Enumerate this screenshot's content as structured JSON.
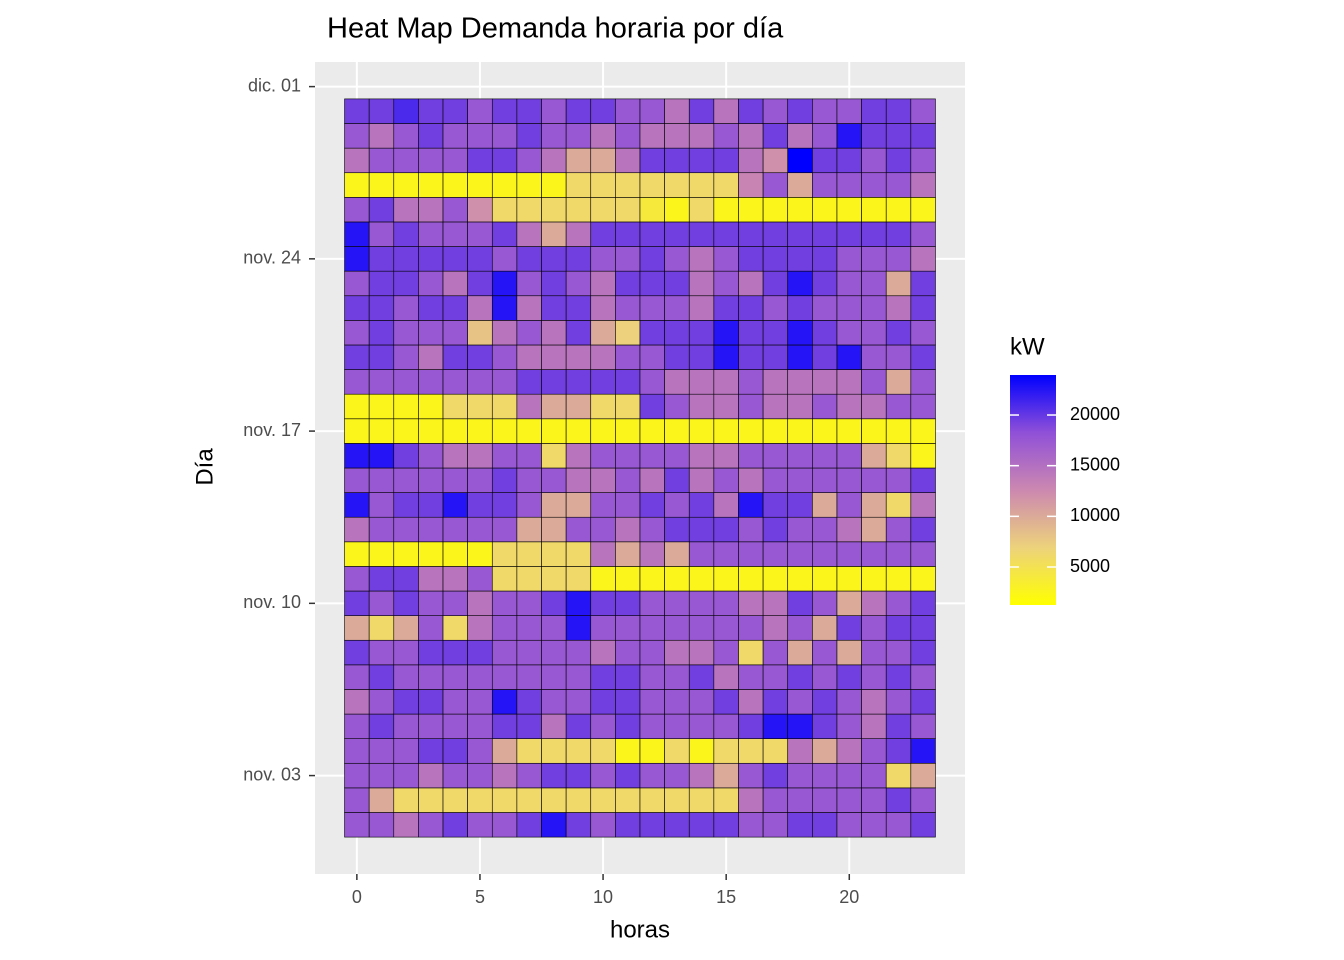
{
  "chart_data": {
    "type": "heatmap",
    "title": "Heat Map Demanda horaria por día",
    "x_label": "horas",
    "y_label": "Día",
    "legend_title": "kW",
    "x": [
      0,
      1,
      2,
      3,
      4,
      5,
      6,
      7,
      8,
      9,
      10,
      11,
      12,
      13,
      14,
      15,
      16,
      17,
      18,
      19,
      20,
      21,
      22,
      23
    ],
    "y": [
      1,
      2,
      3,
      4,
      5,
      6,
      7,
      8,
      9,
      10,
      11,
      12,
      13,
      14,
      15,
      16,
      17,
      18,
      19,
      20,
      21,
      22,
      23,
      24,
      25,
      26,
      27,
      28,
      29,
      30
    ],
    "z": [
      [
        17500,
        17500,
        14500,
        17500,
        19500,
        17500,
        17500,
        19500,
        22500,
        19500,
        17500,
        19500,
        19500,
        19500,
        19500,
        19500,
        17500,
        17500,
        19500,
        19500,
        17500,
        17500,
        17500,
        19500
      ],
      [
        17500,
        10000,
        6000,
        6000,
        6000,
        6000,
        6000,
        6000,
        6000,
        6000,
        6000,
        6000,
        6000,
        6000,
        6000,
        6000,
        14500,
        17500,
        17500,
        17500,
        17500,
        17500,
        19500,
        17500
      ],
      [
        17500,
        17500,
        17500,
        14500,
        17500,
        17500,
        14500,
        17500,
        19500,
        19500,
        17500,
        19500,
        17500,
        17500,
        14500,
        10000,
        17500,
        19500,
        17500,
        17500,
        17500,
        17500,
        6000,
        10000
      ],
      [
        17500,
        17500,
        17500,
        19500,
        19500,
        17500,
        10000,
        6000,
        6000,
        6000,
        6000,
        2500,
        2500,
        6000,
        2500,
        6000,
        6000,
        6000,
        14500,
        10000,
        14500,
        17500,
        19500,
        22500
      ],
      [
        17500,
        19500,
        17500,
        17500,
        17500,
        17500,
        19500,
        19500,
        14500,
        19500,
        17500,
        19500,
        17500,
        17500,
        17500,
        17500,
        19500,
        22500,
        22500,
        19500,
        17500,
        14500,
        19500,
        17500
      ],
      [
        14500,
        17500,
        19500,
        19500,
        17500,
        17500,
        22500,
        19500,
        17500,
        17500,
        19500,
        19500,
        17500,
        17500,
        17500,
        19500,
        14500,
        19500,
        17500,
        19500,
        17500,
        14500,
        17500,
        19500
      ],
      [
        17500,
        19500,
        17500,
        17500,
        17500,
        17500,
        17500,
        17500,
        17500,
        17500,
        19500,
        19500,
        17500,
        17500,
        19500,
        14500,
        17500,
        17500,
        19500,
        17500,
        19500,
        17500,
        19500,
        17500
      ],
      [
        19500,
        17500,
        17500,
        19500,
        19500,
        19500,
        17500,
        17500,
        17500,
        17500,
        14500,
        17500,
        17500,
        14500,
        14500,
        17500,
        6000,
        17500,
        10000,
        17500,
        10000,
        17500,
        17500,
        19500
      ],
      [
        10000,
        6000,
        10000,
        17500,
        6000,
        14500,
        17500,
        17500,
        17500,
        22500,
        17500,
        17500,
        17500,
        17500,
        17500,
        17500,
        17500,
        14500,
        17500,
        10000,
        19500,
        17500,
        19500,
        19500
      ],
      [
        19500,
        17500,
        19500,
        17500,
        17500,
        14500,
        17500,
        17500,
        19500,
        22500,
        19500,
        19500,
        17500,
        17500,
        17500,
        17500,
        14500,
        14500,
        19500,
        17500,
        10000,
        14500,
        17500,
        19500
      ],
      [
        17500,
        19500,
        19500,
        14500,
        14500,
        17500,
        6000,
        6000,
        6000,
        6000,
        2500,
        2500,
        2500,
        2500,
        2500,
        2500,
        2500,
        2500,
        2500,
        2500,
        2500,
        2500,
        2500,
        2500
      ],
      [
        2500,
        2500,
        2500,
        2500,
        2500,
        2500,
        6000,
        6000,
        6000,
        6000,
        14500,
        10000,
        14500,
        10000,
        17500,
        17500,
        17500,
        17500,
        17500,
        17500,
        17500,
        17500,
        17500,
        17500
      ],
      [
        14500,
        17500,
        17500,
        17500,
        17500,
        17500,
        17500,
        10000,
        10000,
        17500,
        17500,
        14500,
        17500,
        19500,
        19500,
        19500,
        17500,
        19500,
        17500,
        17500,
        14500,
        10000,
        17500,
        19500
      ],
      [
        22500,
        17500,
        19500,
        19500,
        22500,
        19500,
        19500,
        17500,
        10000,
        10000,
        17500,
        17500,
        19500,
        17500,
        19500,
        14500,
        22500,
        19500,
        19500,
        10000,
        17500,
        10000,
        6000,
        14500
      ],
      [
        17500,
        17500,
        17500,
        17500,
        17500,
        17500,
        19500,
        17500,
        17500,
        14500,
        14500,
        17500,
        14500,
        19500,
        14500,
        17500,
        14500,
        17500,
        17500,
        17500,
        17500,
        17500,
        17500,
        19500
      ],
      [
        22500,
        22500,
        19500,
        17500,
        14500,
        14500,
        17500,
        17500,
        6000,
        14500,
        17500,
        17500,
        17500,
        17500,
        14500,
        14500,
        17500,
        17500,
        17500,
        17500,
        17500,
        10000,
        6000,
        2500
      ],
      [
        2500,
        2500,
        2500,
        2500,
        2500,
        2500,
        2500,
        2500,
        2500,
        2500,
        2500,
        2500,
        2500,
        2500,
        2500,
        2500,
        2500,
        2500,
        2500,
        2500,
        2500,
        2500,
        2500,
        2500
      ],
      [
        2500,
        2500,
        2500,
        2500,
        6000,
        6000,
        6000,
        14500,
        10000,
        10000,
        6000,
        6000,
        19500,
        17500,
        14500,
        14500,
        17500,
        14500,
        14500,
        17500,
        14500,
        14500,
        17500,
        17500
      ],
      [
        17500,
        17500,
        17500,
        17500,
        17500,
        17500,
        17500,
        19500,
        19500,
        19500,
        19500,
        19500,
        17500,
        14500,
        14500,
        14500,
        17500,
        14500,
        14500,
        14500,
        14500,
        17500,
        10000,
        17500
      ],
      [
        19500,
        19500,
        17500,
        14500,
        19500,
        19500,
        17500,
        14500,
        14500,
        14500,
        14500,
        17500,
        17500,
        19500,
        19500,
        22500,
        19500,
        19500,
        22500,
        19500,
        22500,
        17500,
        17500,
        19500
      ],
      [
        17500,
        19500,
        17500,
        17500,
        17500,
        8000,
        14500,
        17500,
        14500,
        19500,
        10000,
        7000,
        19500,
        19500,
        19500,
        22500,
        19500,
        19500,
        22500,
        19500,
        17500,
        17500,
        19500,
        17500
      ],
      [
        19500,
        19500,
        17500,
        19500,
        19500,
        14500,
        22500,
        14500,
        19500,
        19500,
        14500,
        17500,
        17500,
        17500,
        14500,
        19500,
        19500,
        17500,
        19500,
        17500,
        17500,
        17500,
        14500,
        19500
      ],
      [
        17500,
        19500,
        19500,
        17500,
        14500,
        19500,
        22500,
        17500,
        19500,
        17500,
        14500,
        19500,
        19500,
        19500,
        14500,
        17500,
        14500,
        19500,
        22500,
        19500,
        17500,
        17500,
        10000,
        19500
      ],
      [
        22500,
        19500,
        19500,
        19500,
        19500,
        19500,
        17500,
        19500,
        19500,
        19500,
        17500,
        17500,
        19500,
        17500,
        14500,
        17500,
        19500,
        19500,
        19500,
        19500,
        17500,
        17500,
        17500,
        14500
      ],
      [
        22500,
        17500,
        19500,
        17500,
        17500,
        17500,
        19500,
        14500,
        10000,
        14500,
        19500,
        19500,
        19500,
        19500,
        19500,
        19500,
        19500,
        19500,
        19500,
        19500,
        19500,
        19500,
        19500,
        17500
      ],
      [
        17500,
        19500,
        14500,
        14500,
        17500,
        12000,
        6000,
        6000,
        6000,
        6000,
        6000,
        6000,
        4000,
        2500,
        6000,
        2500,
        2500,
        2500,
        2500,
        2500,
        2500,
        2500,
        2500,
        2500
      ],
      [
        2500,
        2500,
        2500,
        2500,
        2500,
        2500,
        2500,
        2500,
        2500,
        6000,
        6000,
        6000,
        6000,
        6000,
        6000,
        6000,
        13000,
        17500,
        10000,
        17500,
        17500,
        17500,
        17500,
        14500
      ],
      [
        14500,
        17500,
        17500,
        17500,
        17500,
        19500,
        19500,
        17500,
        14500,
        10000,
        10000,
        14500,
        19500,
        19500,
        19500,
        19500,
        14500,
        12000,
        24000,
        19500,
        19500,
        17500,
        19500,
        17500
      ],
      [
        17500,
        14500,
        17500,
        19500,
        17500,
        17500,
        17500,
        19500,
        17500,
        17500,
        14500,
        17500,
        14500,
        14500,
        14500,
        17500,
        14500,
        19500,
        14500,
        17500,
        22500,
        19500,
        19500,
        19500
      ],
      [
        19500,
        19500,
        21000,
        19500,
        19500,
        17500,
        19500,
        19500,
        17500,
        19500,
        19500,
        17500,
        17500,
        14500,
        19500,
        14500,
        19500,
        17500,
        19500,
        17500,
        17500,
        19500,
        19500,
        17500
      ]
    ],
    "xlim": [
      -1.7,
      24.7
    ],
    "xticks": [
      0,
      5,
      10,
      15,
      20
    ],
    "ylim": [
      -1,
      32
    ],
    "yticks": [
      {
        "value": 3,
        "label": "nov. 03"
      },
      {
        "value": 10,
        "label": "nov. 10"
      },
      {
        "value": 17,
        "label": "nov. 17"
      },
      {
        "value": 24,
        "label": "nov. 24"
      },
      {
        "value": 31,
        "label": "dic. 01"
      }
    ],
    "grid": true,
    "colorbar": {
      "limits": [
        1250,
        23950
      ],
      "ticks": [
        5000,
        10000,
        15000,
        20000
      ],
      "colors": [
        "#ffff00",
        "#edd27c",
        "#cc88b0",
        "#9050d8",
        "#0000ff"
      ]
    }
  }
}
